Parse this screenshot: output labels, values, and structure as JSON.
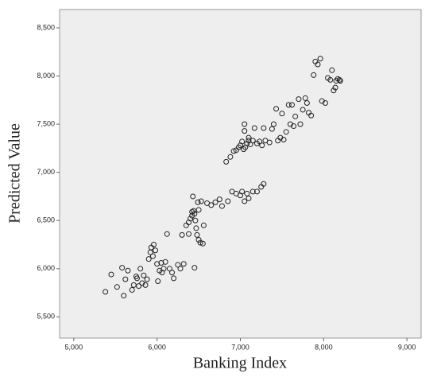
{
  "chart_data": {
    "type": "scatter",
    "x_label": "Banking Index",
    "y_label": "Predicted Value",
    "color": "#222222",
    "background": "#eeeeee",
    "xlim": [
      4830,
      9170
    ],
    "ylim": [
      5280,
      8690
    ],
    "xticks": [
      {
        "value": 5000,
        "label": "5,000"
      },
      {
        "value": 6000,
        "label": "6,000"
      },
      {
        "value": 7000,
        "label": "7,000"
      },
      {
        "value": 8000,
        "label": "8,000"
      },
      {
        "value": 9000,
        "label": "9,000"
      }
    ],
    "yticks": [
      {
        "value": 5500,
        "label": "5,500"
      },
      {
        "value": 6000,
        "label": "6,000"
      },
      {
        "value": 6500,
        "label": "6,500"
      },
      {
        "value": 7000,
        "label": "7,000"
      },
      {
        "value": 7500,
        "label": "7,500"
      },
      {
        "value": 8000,
        "label": "8,000"
      },
      {
        "value": 8500,
        "label": "8,500"
      }
    ],
    "x": [
      5380,
      5450,
      5520,
      5580,
      5600,
      5620,
      5650,
      5700,
      5720,
      5750,
      5760,
      5780,
      5800,
      5820,
      5840,
      5860,
      5880,
      5900,
      5920,
      5930,
      5950,
      5960,
      5980,
      6000,
      6010,
      6030,
      6050,
      6060,
      6080,
      6100,
      6120,
      6150,
      6180,
      6200,
      6250,
      6280,
      6300,
      6320,
      6350,
      6380,
      6400,
      6420,
      6430,
      6440,
      6450,
      6460,
      6470,
      6480,
      6500,
      6520,
      6450,
      6490,
      6530,
      6560,
      6600,
      6650,
      6700,
      6750,
      6780,
      6850,
      6900,
      6950,
      7000,
      7020,
      7050,
      7080,
      7100,
      7150,
      7200,
      7250,
      7280,
      6830,
      6880,
      6920,
      6950,
      6980,
      7000,
      7020,
      7040,
      7050,
      7060,
      7080,
      7100,
      7120,
      7150,
      7170,
      7200,
      7230,
      7260,
      7280,
      7300,
      7350,
      7380,
      7400,
      7430,
      7450,
      7480,
      7500,
      7520,
      7550,
      7580,
      7600,
      7620,
      7640,
      7660,
      7700,
      7720,
      7750,
      7780,
      7800,
      7820,
      7850,
      7880,
      7900,
      7930,
      7960,
      7980,
      8020,
      8050,
      8080,
      8100,
      8120,
      8140,
      8150,
      8170,
      8190,
      8200,
      7050,
      7100,
      6550,
      6380,
      6500,
      6420
    ],
    "values": [
      5760,
      5940,
      5810,
      6010,
      5720,
      5890,
      5980,
      5780,
      5830,
      5920,
      5900,
      5820,
      6000,
      5850,
      5930,
      5830,
      5890,
      6100,
      6170,
      6220,
      6130,
      6250,
      6190,
      6050,
      5870,
      5980,
      6060,
      5960,
      6000,
      6070,
      6360,
      6000,
      5960,
      5900,
      6040,
      6000,
      6350,
      6050,
      6450,
      6480,
      6520,
      6550,
      6750,
      6600,
      6570,
      6500,
      6420,
      6350,
      6300,
      6270,
      6010,
      6690,
      6700,
      6450,
      6680,
      6660,
      6690,
      6720,
      6650,
      6700,
      6800,
      6780,
      6760,
      6800,
      6700,
      6780,
      6730,
      6800,
      6800,
      6850,
      6880,
      7110,
      7160,
      7220,
      7230,
      7260,
      7280,
      7320,
      7240,
      7500,
      7260,
      7300,
      7330,
      7290,
      7330,
      7460,
      7300,
      7320,
      7280,
      7460,
      7330,
      7310,
      7450,
      7500,
      7660,
      7330,
      7360,
      7610,
      7340,
      7420,
      7700,
      7500,
      7700,
      7480,
      7580,
      7760,
      7500,
      7650,
      7770,
      7720,
      7620,
      7590,
      8010,
      8150,
      8120,
      8180,
      7740,
      7720,
      7980,
      7960,
      8060,
      7850,
      7880,
      7950,
      7970,
      7960,
      7950,
      7430,
      7360,
      6260,
      6360,
      6610,
      6590
    ]
  }
}
